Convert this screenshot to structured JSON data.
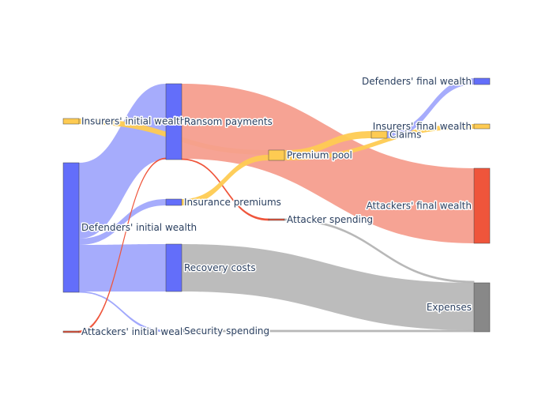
{
  "chart_data": {
    "type": "sankey",
    "nodes": [
      {
        "id": "insurers_initial",
        "label": "Insurers' initial wealth",
        "color": "#fecb52"
      },
      {
        "id": "defenders_initial",
        "label": "Defenders' initial wealth",
        "color": "#636efa"
      },
      {
        "id": "attackers_initial",
        "label": "Attackers' initial wealth",
        "color": "#ef553b"
      },
      {
        "id": "ransom",
        "label": "Ransom payments",
        "color": "#636efa"
      },
      {
        "id": "ins_premiums",
        "label": "Insurance premiums",
        "color": "#636efa"
      },
      {
        "id": "recovery",
        "label": "Recovery costs",
        "color": "#636efa"
      },
      {
        "id": "security",
        "label": "Security spending",
        "color": "#636efa"
      },
      {
        "id": "premium_pool",
        "label": "Premium pool",
        "color": "#fecb52"
      },
      {
        "id": "attacker_spending",
        "label": "Attacker spending",
        "color": "#ef553b"
      },
      {
        "id": "claims",
        "label": "Claims",
        "color": "#fecb52"
      },
      {
        "id": "defenders_final",
        "label": "Defenders' final wealth",
        "color": "#636efa"
      },
      {
        "id": "insurers_final",
        "label": "Insurers' final wealth",
        "color": "#fecb52"
      },
      {
        "id": "attackers_final",
        "label": "Attackers' final wealth",
        "color": "#ef553b"
      },
      {
        "id": "expenses",
        "label": "Expenses",
        "color": "#888888"
      }
    ],
    "links": [
      {
        "source": "defenders_initial",
        "target": "ransom",
        "value": 22,
        "color": "#a1a8fc"
      },
      {
        "source": "defenders_initial",
        "target": "ins_premiums",
        "value": 2,
        "color": "#a1a8fc"
      },
      {
        "source": "defenders_initial",
        "target": "recovery",
        "value": 14,
        "color": "#a1a8fc"
      },
      {
        "source": "defenders_initial",
        "target": "security",
        "value": 0.3,
        "color": "#a1a8fc"
      },
      {
        "source": "insurers_initial",
        "target": "premium_pool",
        "value": 1.5,
        "color": "#fecb52"
      },
      {
        "source": "attackers_initial",
        "target": "ransom",
        "value": 0.2,
        "color": "#ef553b"
      },
      {
        "source": "ransom",
        "target": "attackers_final",
        "value": 22,
        "color": "#f59e8e"
      },
      {
        "source": "ransom",
        "target": "attacker_spending",
        "value": 0.2,
        "color": "#ef553b"
      },
      {
        "source": "ins_premiums",
        "target": "premium_pool",
        "value": 2,
        "color": "#fecb52"
      },
      {
        "source": "premium_pool",
        "target": "claims",
        "value": 2,
        "color": "#fecb52"
      },
      {
        "source": "premium_pool",
        "target": "insurers_final",
        "value": 1.5,
        "color": "#fecb52"
      },
      {
        "source": "claims",
        "target": "defenders_final",
        "value": 2,
        "color": "#a1a8fc"
      },
      {
        "source": "recovery",
        "target": "expenses",
        "value": 14,
        "color": "#b8b8b8"
      },
      {
        "source": "attacker_spending",
        "target": "expenses",
        "value": 0.2,
        "color": "#b8b8b8"
      },
      {
        "source": "security",
        "target": "expenses",
        "value": 0.3,
        "color": "#b8b8b8"
      }
    ]
  }
}
